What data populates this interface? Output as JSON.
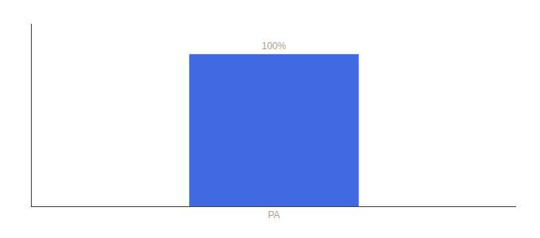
{
  "chart_data": {
    "type": "bar",
    "categories": [
      "PA"
    ],
    "values": [
      100
    ],
    "value_labels": [
      "100%"
    ],
    "data_labels": true,
    "color": "#4169e1",
    "ylim": [
      0,
      120
    ],
    "tick_labels": "x",
    "grid": false
  }
}
